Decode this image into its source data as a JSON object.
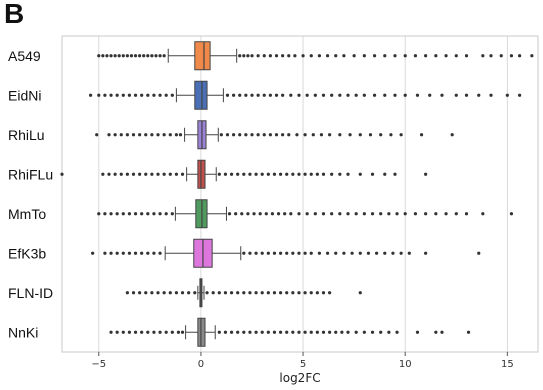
{
  "panel": {
    "label": "B"
  },
  "chart_data": {
    "type": "boxplot",
    "orientation": "horizontal",
    "xlabel": "log2FC",
    "ylabel": "",
    "xlim": [
      -6.8,
      16.5
    ],
    "xticks": [
      -5,
      0,
      5,
      10,
      15
    ],
    "grid": "vertical",
    "series": [
      {
        "name": "A549",
        "color": "#f08a4b",
        "whisker_low": -1.6,
        "q1": -0.3,
        "median": 0.15,
        "q3": 0.45,
        "whisker_high": 1.75,
        "outliers": [
          -5.0,
          -4.8,
          -4.6,
          -4.4,
          -4.2,
          -4.0,
          -3.8,
          -3.6,
          -3.4,
          -3.2,
          -3.0,
          -2.8,
          -2.6,
          -2.4,
          -2.2,
          -2.0,
          -1.8,
          1.9,
          2.1,
          2.3,
          2.5,
          2.8,
          3.1,
          3.4,
          3.7,
          4.0,
          4.3,
          4.6,
          5.0,
          5.4,
          5.8,
          6.2,
          6.6,
          7.0,
          7.5,
          8.0,
          8.5,
          9.0,
          9.5,
          10.0,
          10.5,
          11.0,
          11.5,
          12.0,
          12.5,
          13.0,
          13.8,
          14.2,
          14.7,
          15.2,
          15.6,
          16.2
        ]
      },
      {
        "name": "EidNi",
        "color": "#4a6fb5",
        "whisker_low": -1.2,
        "q1": -0.3,
        "median": 0.05,
        "q3": 0.3,
        "whisker_high": 1.1,
        "outliers": [
          -5.4,
          -5.0,
          -4.7,
          -4.4,
          -4.1,
          -3.8,
          -3.5,
          -3.2,
          -2.9,
          -2.6,
          -2.3,
          -2.0,
          -1.7,
          -1.4,
          1.3,
          1.6,
          1.9,
          2.2,
          2.5,
          2.8,
          3.1,
          3.4,
          3.7,
          4.0,
          4.4,
          4.8,
          5.2,
          5.6,
          6.0,
          6.4,
          6.8,
          7.2,
          7.6,
          8.0,
          8.5,
          9.0,
          9.5,
          10.0,
          10.6,
          11.2,
          11.8,
          12.5,
          13.0,
          13.6,
          14.2,
          15.0,
          15.6
        ]
      },
      {
        "name": "RhiLu",
        "color": "#9a82d6",
        "whisker_low": -0.8,
        "q1": -0.15,
        "median": 0.05,
        "q3": 0.25,
        "whisker_high": 0.85,
        "outliers": [
          -5.1,
          -4.5,
          -4.2,
          -3.9,
          -3.6,
          -3.3,
          -3.0,
          -2.7,
          -2.4,
          -2.1,
          -1.8,
          -1.5,
          -1.2,
          -1.0,
          1.0,
          1.3,
          1.6,
          1.9,
          2.2,
          2.5,
          2.8,
          3.1,
          3.4,
          3.7,
          4.0,
          4.3,
          4.7,
          5.1,
          5.5,
          5.9,
          6.3,
          6.8,
          7.3,
          7.8,
          8.3,
          8.8,
          9.3,
          9.8,
          10.8,
          12.3
        ]
      },
      {
        "name": "RhiFLu",
        "color": "#c0504d",
        "whisker_low": -0.7,
        "q1": -0.15,
        "median": 0.0,
        "q3": 0.2,
        "whisker_high": 0.75,
        "outliers": [
          -6.8,
          -4.8,
          -4.5,
          -4.2,
          -3.9,
          -3.6,
          -3.3,
          -3.0,
          -2.7,
          -2.4,
          -2.1,
          -1.8,
          -1.5,
          -1.2,
          -0.9,
          0.9,
          1.2,
          1.5,
          1.8,
          2.1,
          2.4,
          2.7,
          3.0,
          3.3,
          3.6,
          3.9,
          4.2,
          4.5,
          4.8,
          5.1,
          5.4,
          5.7,
          6.0,
          6.4,
          6.8,
          7.2,
          7.8,
          8.4,
          9.0,
          9.5,
          11.0
        ]
      },
      {
        "name": "MmTo",
        "color": "#4f9a5e",
        "whisker_low": -1.25,
        "q1": -0.25,
        "median": 0.05,
        "q3": 0.3,
        "whisker_high": 1.25,
        "outliers": [
          -5.0,
          -4.7,
          -4.4,
          -4.1,
          -3.8,
          -3.5,
          -3.2,
          -2.9,
          -2.6,
          -2.3,
          -2.0,
          -1.7,
          -1.4,
          1.4,
          1.7,
          2.0,
          2.3,
          2.6,
          2.9,
          3.2,
          3.5,
          3.8,
          4.1,
          4.4,
          4.8,
          5.2,
          5.6,
          6.0,
          6.4,
          6.8,
          7.2,
          7.6,
          8.0,
          8.4,
          8.8,
          9.2,
          9.6,
          10.0,
          10.5,
          11.0,
          11.5,
          12.0,
          12.5,
          13.0,
          13.8,
          15.2
        ]
      },
      {
        "name": "EfK3b",
        "color": "#dd77dd",
        "whisker_low": -1.75,
        "q1": -0.35,
        "median": 0.1,
        "q3": 0.55,
        "whisker_high": 1.95,
        "outliers": [
          -5.3,
          -4.7,
          -4.4,
          -4.1,
          -3.8,
          -3.5,
          -3.2,
          -2.9,
          -2.6,
          -2.3,
          -2.0,
          2.1,
          2.4,
          2.7,
          3.0,
          3.3,
          3.6,
          3.9,
          4.2,
          4.5,
          4.8,
          5.1,
          5.4,
          5.8,
          6.2,
          6.6,
          7.0,
          7.4,
          7.8,
          8.2,
          8.6,
          9.0,
          9.4,
          9.8,
          10.2,
          11.0,
          13.6
        ]
      },
      {
        "name": "FLN-ID",
        "color": "#8c6a4a",
        "whisker_low": -0.15,
        "q1": -0.05,
        "median": 0.0,
        "q3": 0.05,
        "whisker_high": 0.15,
        "outliers": [
          -3.6,
          -3.3,
          -3.0,
          -2.7,
          -2.4,
          -2.1,
          -1.8,
          -1.5,
          -1.2,
          -0.9,
          -0.6,
          -0.3,
          0.3,
          0.6,
          0.9,
          1.2,
          1.5,
          1.8,
          2.1,
          2.4,
          2.7,
          3.0,
          3.3,
          3.6,
          3.9,
          4.2,
          4.5,
          4.8,
          5.1,
          5.4,
          5.7,
          6.0,
          6.3,
          7.8
        ]
      },
      {
        "name": "NnKi",
        "color": "#8a8a8a",
        "whisker_low": -0.75,
        "q1": -0.15,
        "median": 0.0,
        "q3": 0.2,
        "whisker_high": 0.7,
        "outliers": [
          -4.4,
          -4.1,
          -3.8,
          -3.5,
          -3.2,
          -2.9,
          -2.6,
          -2.3,
          -2.0,
          -1.7,
          -1.4,
          -1.1,
          -0.9,
          0.9,
          1.2,
          1.5,
          1.8,
          2.1,
          2.4,
          2.7,
          3.0,
          3.3,
          3.6,
          3.9,
          4.2,
          4.5,
          4.8,
          5.1,
          5.4,
          5.7,
          6.0,
          6.3,
          6.6,
          6.9,
          7.2,
          7.6,
          8.0,
          8.4,
          8.8,
          9.2,
          9.6,
          10.6,
          11.5,
          11.8,
          13.1
        ]
      }
    ]
  }
}
